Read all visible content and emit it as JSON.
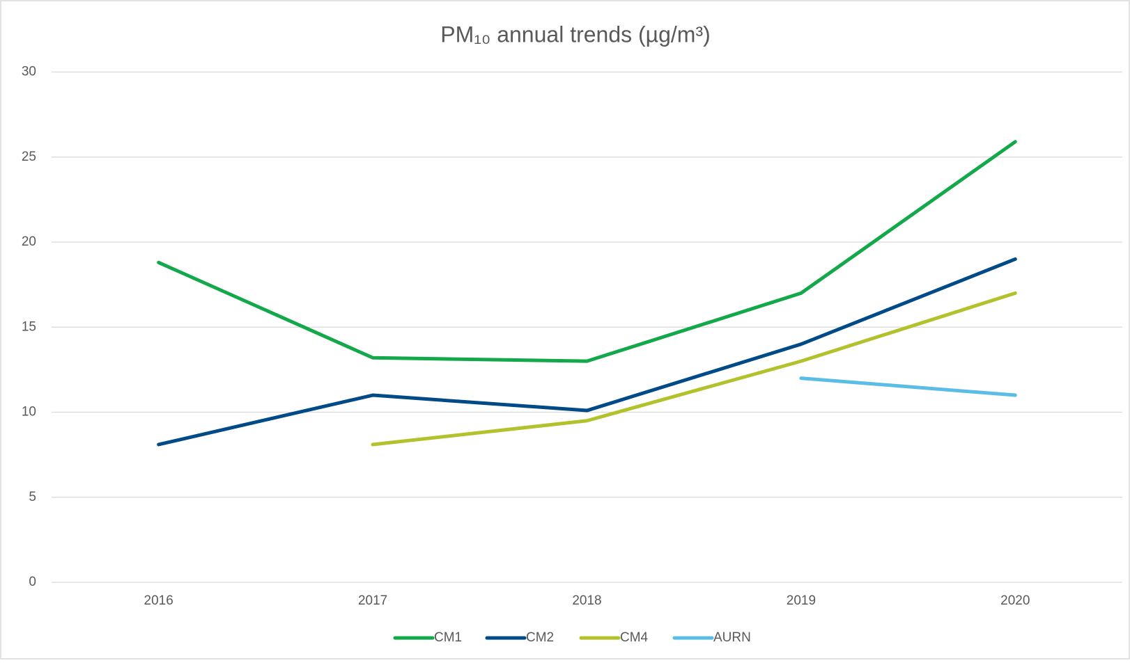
{
  "chart_data": {
    "type": "line",
    "title": "PM₁₀ annual trends (µg/m³)",
    "categories": [
      "2016",
      "2017",
      "2018",
      "2019",
      "2020"
    ],
    "series": [
      {
        "name": "CM1",
        "color": "#13a84a",
        "values": [
          18.8,
          13.2,
          13.0,
          17.0,
          25.9
        ]
      },
      {
        "name": "CM2",
        "color": "#004a87",
        "values": [
          8.1,
          11.0,
          10.1,
          14.0,
          19.0
        ]
      },
      {
        "name": "CM4",
        "color": "#b3c22c",
        "values": [
          null,
          8.1,
          9.5,
          13.0,
          17.0
        ]
      },
      {
        "name": "AURN",
        "color": "#5bbde6",
        "values": [
          null,
          null,
          null,
          12.0,
          11.0
        ]
      }
    ],
    "ylim": [
      0,
      30
    ],
    "yticks": [
      0,
      5,
      10,
      15,
      20,
      25,
      30
    ],
    "grid": true,
    "legend": "bottom"
  }
}
